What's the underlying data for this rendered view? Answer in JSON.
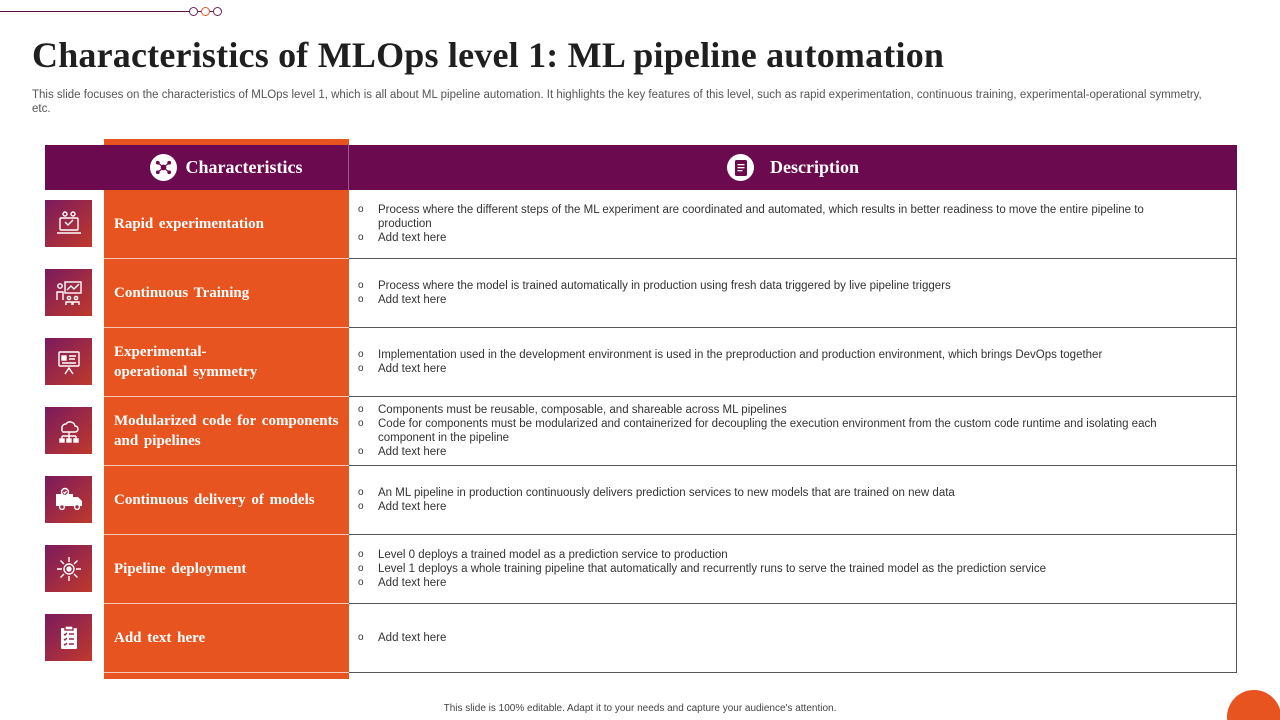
{
  "title": "Characteristics of MLOps level 1: ML pipeline automation",
  "subtitle": "This slide focuses on the characteristics of MLOps level 1, which is all about ML pipeline automation. It highlights the key features of this level,  such as rapid experimentation, continuous training, experimental-operational symmetry, etc.",
  "header": {
    "characteristics": "Characteristics",
    "description": "Description"
  },
  "rows": [
    {
      "icon": "experiment-laptop-icon",
      "label": "Rapid experimentation",
      "items": [
        "Process where the different steps of the ML  experiment are coordinated and automated, which results in better readiness to move the entire pipeline to production",
        "Add text here"
      ]
    },
    {
      "icon": "training-presentation-icon",
      "label": "Continuous  Training",
      "items": [
        "Process where the model is trained automatically in production using fresh data triggered by live  pipeline triggers",
        "Add text here"
      ]
    },
    {
      "icon": "symmetry-monitor-icon",
      "label": "Experimental-\noperational symmetry",
      "items": [
        "Implementation used in the development environment is used in the preproduction and production environment, which brings DevOps together",
        "Add text here"
      ]
    },
    {
      "icon": "cloud-network-icon",
      "label": "Modularized  code for components  and pipelines",
      "items": [
        "Components must be reusable, composable, and shareable across ML pipelines",
        "Code for components must be modularized and containerized for decoupling the execution environment from the custom code runtime and isolating each component in the pipeline",
        "Add text here"
      ]
    },
    {
      "icon": "delivery-truck-icon",
      "label": "Continuous  delivery  of models",
      "items": [
        "An ML pipeline in production continuously delivers prediction services to new models that are trained on new data",
        "Add text here"
      ]
    },
    {
      "icon": "deployment-gear-icon",
      "label": "Pipeline  deployment",
      "items": [
        "Level 0 deploys a trained model as a prediction service to production",
        "Level 1 deploys a whole training pipeline that automatically and recurrently runs to serve the trained model as the prediction service",
        "Add text here"
      ]
    },
    {
      "icon": "checklist-clipboard-icon",
      "label": "Add text here",
      "items": [
        "Add text here"
      ]
    }
  ],
  "footer": "This slide is 100% editable.  Adapt it to your needs and capture your audience's attention.",
  "colors": {
    "purple": "#6b0a4e",
    "orange": "#e8541f"
  }
}
